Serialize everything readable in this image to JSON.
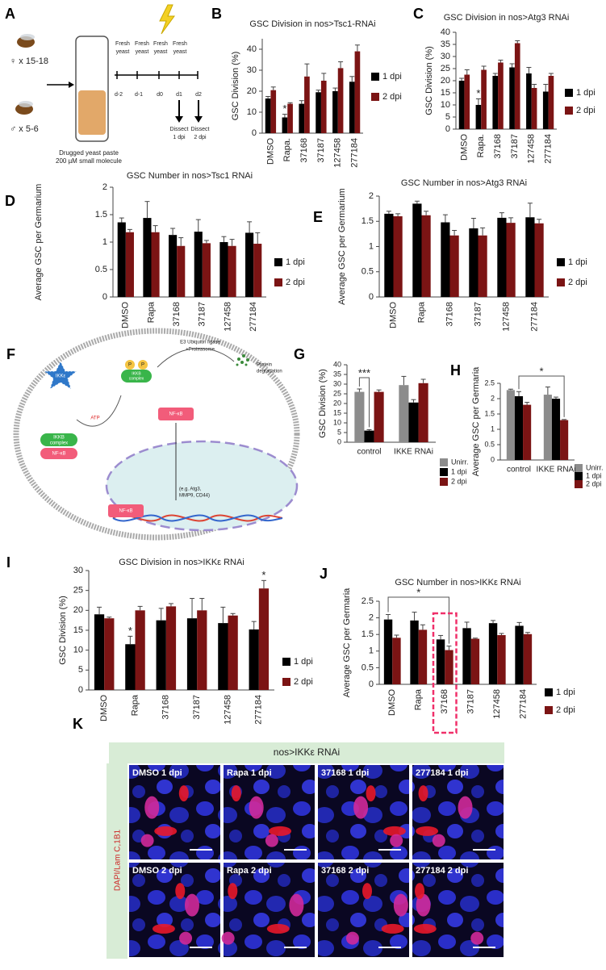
{
  "panel_labels": [
    "A",
    "B",
    "C",
    "D",
    "E",
    "F",
    "G",
    "H",
    "I",
    "J",
    "K"
  ],
  "panel_a": {
    "female": "♀ x 15-18",
    "male": "♂ x 5-6",
    "tube_label": [
      "Drugged yeast paste",
      "200 µM small molecule"
    ],
    "fresh": [
      "Fresh",
      "yeast"
    ],
    "days": [
      "d-2",
      "d-1",
      "d0",
      "d1",
      "d2"
    ],
    "dissect": [
      [
        "Dissect",
        "1 dpi"
      ],
      [
        "Dissect",
        "2 dpi"
      ]
    ]
  },
  "panel_f": {
    "e3": [
      "E3 Ubiquitin ligase",
      "+Proteasome"
    ],
    "degradation": [
      "Protein",
      "degradation"
    ],
    "ikke": "IKKε",
    "p": "P",
    "atp": "ATP",
    "ikkb": [
      "IKKB",
      "complex"
    ],
    "nfkb": "NF-κB",
    "targets": [
      "(e.g. Atg3,",
      "MMP9, CD44)"
    ]
  },
  "panel_k": {
    "header": "nos>IKKε RNAi",
    "side_label": "DAPI/Lam C,1B1",
    "images": [
      "DMSO 1 dpi",
      "Rapa 1 dpi",
      "37168 1 dpi",
      "277184 1 dpi",
      "DMSO 2 dpi",
      "Rapa 2 dpi",
      "37168 2 dpi",
      "277184 2 dpi"
    ]
  },
  "chart_data": [
    {
      "type": "bar",
      "title": "GSC Division in nos>Tsc1-RNAi",
      "ylabel": "GSC Division (%)",
      "categories": [
        "DMSO",
        "Rapa.",
        "37168",
        "37187",
        "127458",
        "277184"
      ],
      "series": [
        {
          "name": "1 dpi",
          "color": "#000000",
          "values": [
            16.5,
            7.5,
            14,
            19.5,
            20,
            24.5
          ],
          "errors": [
            1,
            1.5,
            1.5,
            1,
            1.5,
            2.5
          ]
        },
        {
          "name": "2 dpi",
          "color": "#7b1414",
          "values": [
            20.5,
            14,
            27,
            25,
            31,
            39
          ],
          "errors": [
            1.5,
            0.5,
            6,
            3.5,
            3,
            3
          ]
        }
      ],
      "ylim": [
        0,
        45
      ],
      "yticks": [
        0,
        10,
        20,
        30,
        40
      ],
      "legend": "right",
      "annotations": [
        "*"
      ]
    },
    {
      "type": "bar",
      "title": "GSC Division in nos>Atg3 RNAi",
      "ylabel": "GSC Division (%)",
      "categories": [
        "DMSO",
        "Rapa.",
        "37168",
        "37187",
        "127458",
        "277184"
      ],
      "series": [
        {
          "name": "1 dpi",
          "color": "#000000",
          "values": [
            20,
            10,
            22,
            25.5,
            23,
            15.5
          ],
          "errors": [
            1,
            2.5,
            1,
            1.5,
            2.5,
            3
          ]
        },
        {
          "name": "2 dpi",
          "color": "#7b1414",
          "values": [
            22.5,
            24.5,
            27.5,
            35.5,
            17,
            22
          ],
          "errors": [
            2,
            1.5,
            1,
            1,
            1.5,
            1
          ]
        }
      ],
      "ylim": [
        0,
        40
      ],
      "yticks": [
        0,
        5,
        10,
        15,
        20,
        25,
        30,
        35,
        40
      ],
      "legend": "right",
      "annotations": [
        "*"
      ]
    },
    {
      "type": "bar",
      "title": "GSC Number in nos>Tsc1 RNAi",
      "ylabel": "Average GSC per Germarium",
      "categories": [
        "DMSO",
        "Rapa",
        "37168",
        "37187",
        "127458",
        "277184"
      ],
      "series": [
        {
          "name": "1 dpi",
          "color": "#000000",
          "values": [
            1.36,
            1.44,
            1.13,
            1.19,
            1.0,
            1.17
          ],
          "errors": [
            0.08,
            0.3,
            0.12,
            0.22,
            0.1,
            0.2
          ]
        },
        {
          "name": "2 dpi",
          "color": "#7b1414",
          "values": [
            1.18,
            1.18,
            0.93,
            0.98,
            0.93,
            0.97
          ],
          "errors": [
            0.05,
            0.12,
            0.15,
            0.05,
            0.12,
            0.2
          ]
        }
      ],
      "ylim": [
        0,
        2
      ],
      "yticks": [
        0,
        0.5,
        1,
        1.5,
        2
      ],
      "legend": "right",
      "annotations": []
    },
    {
      "type": "bar",
      "title": "GSC Number in nos>Atg3 RNAi",
      "ylabel": "Average GSC per Germarium",
      "categories": [
        "DMSO",
        "Rapa",
        "37168",
        "37187",
        "127458",
        "277184"
      ],
      "series": [
        {
          "name": "1 dpi",
          "color": "#000000",
          "values": [
            1.65,
            1.85,
            1.48,
            1.36,
            1.57,
            1.58
          ],
          "errors": [
            0.05,
            0.05,
            0.15,
            0.2,
            0.1,
            0.28
          ]
        },
        {
          "name": "2 dpi",
          "color": "#7b1414",
          "values": [
            1.6,
            1.62,
            1.22,
            1.22,
            1.47,
            1.46
          ],
          "errors": [
            0.05,
            0.08,
            0.1,
            0.15,
            0.1,
            0.08
          ]
        }
      ],
      "ylim": [
        0,
        2
      ],
      "yticks": [
        0,
        0.5,
        1,
        1.5,
        2
      ],
      "legend": "right",
      "annotations": []
    },
    {
      "type": "bar",
      "ylabel": "GSC Division (%)",
      "categories": [
        "control",
        "IKKE RNAi"
      ],
      "series": [
        {
          "name": "Unirr.",
          "color": "#8c8c8c",
          "values": [
            26,
            29.5
          ],
          "errors": [
            1.5,
            4.5
          ]
        },
        {
          "name": "1 dpi",
          "color": "#000000",
          "values": [
            6,
            20.5
          ],
          "errors": [
            0.5,
            1.5
          ]
        },
        {
          "name": "2 dpi",
          "color": "#7b1414",
          "values": [
            26,
            30.5
          ],
          "errors": [
            1,
            2
          ]
        }
      ],
      "ylim": [
        0,
        40
      ],
      "yticks": [
        0,
        5,
        10,
        15,
        20,
        25,
        30,
        35,
        40
      ],
      "legend": "right",
      "annotations": [
        "***"
      ]
    },
    {
      "type": "bar",
      "ylabel": "Average GSC per Germaria",
      "categories": [
        "control",
        "IKKE RNAi"
      ],
      "series": [
        {
          "name": "Unirr.",
          "color": "#8c8c8c",
          "values": [
            2.28,
            2.13
          ],
          "errors": [
            0.03,
            0.25
          ]
        },
        {
          "name": "1 dpi",
          "color": "#000000",
          "values": [
            2.08,
            2.0
          ],
          "errors": [
            0.15,
            0.05
          ]
        },
        {
          "name": "2 dpi",
          "color": "#7b1414",
          "values": [
            1.8,
            1.3
          ],
          "errors": [
            0.08,
            0.02
          ]
        }
      ],
      "ylim": [
        0,
        2.5
      ],
      "yticks": [
        0,
        0.5,
        1,
        1.5,
        2,
        2.5
      ],
      "legend": "right",
      "annotations": [
        "*"
      ]
    },
    {
      "type": "bar",
      "title": "GSC Division in nos>IKKε RNAi",
      "ylabel": "GSC Division (%)",
      "categories": [
        "DMSO",
        "Rapa",
        "37168",
        "37187",
        "127458",
        "277184"
      ],
      "series": [
        {
          "name": "1 dpi",
          "color": "#000000",
          "values": [
            19,
            11.5,
            17.5,
            18,
            16.8,
            15.2
          ],
          "errors": [
            1.8,
            2,
            3,
            5,
            4,
            2
          ]
        },
        {
          "name": "2 dpi",
          "color": "#7b1414",
          "values": [
            18,
            20,
            21,
            20,
            18.7,
            25.5
          ],
          "errors": [
            0.3,
            1,
            0.7,
            3,
            0.5,
            2
          ]
        }
      ],
      "ylim": [
        0,
        30
      ],
      "yticks": [
        0,
        5,
        10,
        15,
        20,
        25,
        30
      ],
      "legend": "right",
      "annotations": [
        "*",
        "*"
      ]
    },
    {
      "type": "bar",
      "title": "GSC Number in nos>IKKε RNAi",
      "ylabel": "Average GSC per Germaria",
      "categories": [
        "DMSO",
        "Rapa",
        "37168",
        "37187",
        "127458",
        "277184"
      ],
      "series": [
        {
          "name": "1 dpi",
          "color": "#000000",
          "values": [
            1.95,
            1.92,
            1.35,
            1.69,
            1.84,
            1.76
          ],
          "errors": [
            0.15,
            0.25,
            0.12,
            0.18,
            0.08,
            0.1
          ]
        },
        {
          "name": "2 dpi",
          "color": "#7b1414",
          "values": [
            1.4,
            1.64,
            1.03,
            1.37,
            1.48,
            1.51
          ],
          "errors": [
            0.08,
            0.15,
            0.12,
            0.02,
            0.05,
            0.05
          ]
        }
      ],
      "ylim": [
        0,
        2.5
      ],
      "yticks": [
        0,
        0.5,
        1,
        1.5,
        2,
        2.5
      ],
      "legend": "right",
      "annotations": [
        "*"
      ]
    }
  ]
}
